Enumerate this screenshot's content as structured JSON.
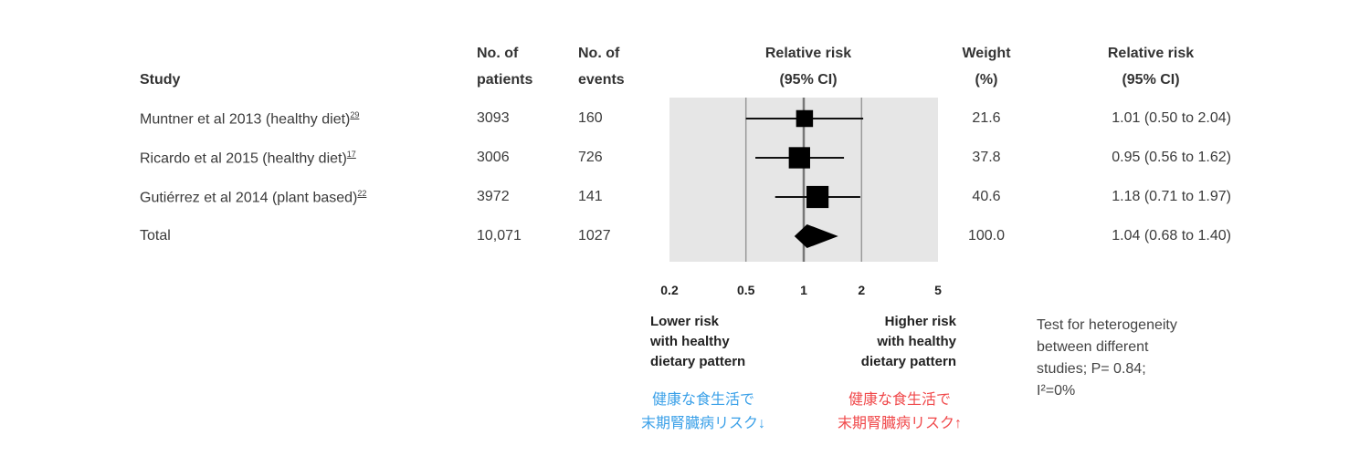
{
  "headers": {
    "study": "Study",
    "patients_1": "No. of",
    "patients_2": "patients",
    "events_1": "No. of",
    "events_2": "events",
    "rr_plot_1": "Relative risk",
    "rr_plot_2": "(95% CI)",
    "weight_1": "Weight",
    "weight_2": "(%)",
    "rr_text_1": "Relative risk",
    "rr_text_2": "(95% CI)"
  },
  "rows": [
    {
      "study": "Muntner et al 2013 (healthy diet)",
      "ref": "29",
      "patients": "3093",
      "events": "160",
      "weight": "21.6",
      "rr_text": "1.01 (0.50 to 2.04)"
    },
    {
      "study": "Ricardo et al 2015 (healthy diet)",
      "ref": "17",
      "patients": "3006",
      "events": "726",
      "weight": "37.8",
      "rr_text": "0.95 (0.56 to 1.62)"
    },
    {
      "study": "Gutiérrez et al 2014 (plant based)",
      "ref": "22",
      "patients": "3972",
      "events": "141",
      "weight": "40.6",
      "rr_text": "1.18 (0.71 to 1.97)"
    },
    {
      "study": "Total",
      "ref": "",
      "patients": "10,071",
      "events": "1027",
      "weight": "100.0",
      "rr_text": "1.04 (0.68 to 1.40)"
    }
  ],
  "chart_data": {
    "type": "forest",
    "scale": "log",
    "xlim": [
      0.2,
      5
    ],
    "ticks": [
      "0.2",
      "0.5",
      "1",
      "2",
      "5"
    ],
    "reference_lines": [
      0.5,
      1,
      2
    ],
    "studies": [
      {
        "name": "Muntner et al 2013",
        "rr": 1.01,
        "lo": 0.5,
        "hi": 2.04,
        "weight": 21.6
      },
      {
        "name": "Ricardo et al 2015",
        "rr": 0.95,
        "lo": 0.56,
        "hi": 1.62,
        "weight": 37.8
      },
      {
        "name": "Gutiérrez et al 2014",
        "rr": 1.18,
        "lo": 0.71,
        "hi": 1.97,
        "weight": 40.6
      }
    ],
    "total": {
      "rr": 1.04,
      "lo": 0.68,
      "hi": 1.4
    },
    "left_label": [
      "Lower risk",
      "with healthy",
      "dietary pattern"
    ],
    "right_label": [
      "Higher risk",
      "with healthy",
      "dietary pattern"
    ]
  },
  "annotations": {
    "lower_jp_1": "健康な食生活で",
    "lower_jp_2": "末期腎臓病リスク↓",
    "higher_jp_1": "健康な食生活で",
    "higher_jp_2": "末期腎臓病リスク↑",
    "heterogeneity": [
      "Test for heterogeneity",
      "between different",
      "studies; P= 0.84;",
      "I²=0%"
    ]
  },
  "colors": {
    "lower": "#3aa0e8",
    "higher": "#f0484a",
    "panel": "#e6e6e6"
  }
}
